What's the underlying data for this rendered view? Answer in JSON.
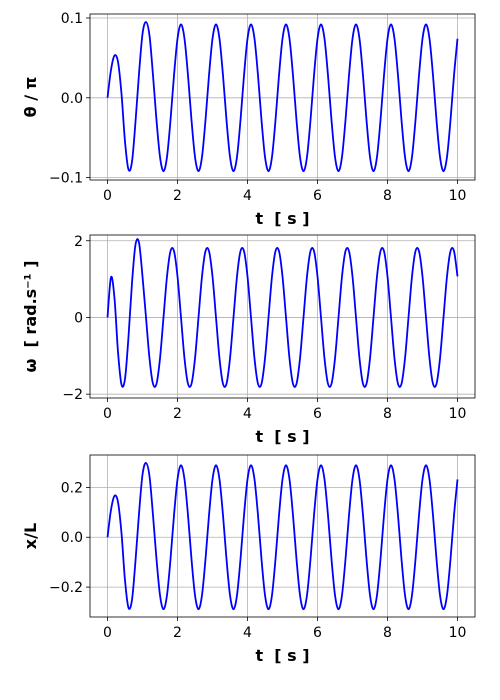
{
  "chart_data": [
    {
      "type": "line",
      "ylabel": "θ / π",
      "xlabel": "t  [ s ]",
      "color": "#0000ff",
      "grid": true,
      "xlim": [
        -0.5,
        10.5
      ],
      "xticks": [
        0,
        2,
        4,
        6,
        8,
        10
      ],
      "ylim": [
        -0.103,
        0.105
      ],
      "yticks": [
        {
          "value": -0.1,
          "label": "−0.1"
        },
        {
          "value": 0,
          "label": "0.0"
        },
        {
          "value": 0.1,
          "label": "0.1"
        }
      ],
      "x": [
        0,
        0.1,
        0.2,
        0.3,
        0.4,
        0.5,
        0.6,
        0.7,
        0.8,
        0.9,
        1,
        1.1,
        1.2,
        1.3,
        1.4,
        1.5,
        1.6,
        1.7,
        1.8,
        1.9,
        2,
        2.1,
        2.2,
        2.3,
        2.4,
        2.5,
        2.6,
        2.7,
        2.8,
        2.9,
        3,
        3.1,
        3.2,
        3.3,
        3.4,
        3.5,
        3.6,
        3.7,
        3.8,
        3.9,
        4,
        4.1,
        4.2,
        4.3,
        4.4,
        4.5,
        4.6,
        4.7,
        4.8,
        4.9,
        5,
        5.1,
        5.2,
        5.3,
        5.4,
        5.5,
        5.6,
        5.7,
        5.8,
        5.9,
        6,
        6.1,
        6.2,
        6.3,
        6.4,
        6.5,
        6.6,
        6.7,
        6.8,
        6.9,
        7,
        7.1,
        7.2,
        7.3,
        7.4,
        7.5,
        7.6,
        7.7,
        7.8,
        7.9,
        8,
        8.1,
        8.2,
        8.3,
        8.4,
        8.5,
        8.6,
        8.7,
        8.8,
        8.9,
        9,
        9.1,
        9.2,
        9.3,
        9.4,
        9.5,
        9.6,
        9.7,
        9.8,
        9.9,
        10
      ],
      "values": [
        0,
        0.035,
        0.053,
        0.045,
        0.005,
        -0.055,
        -0.09,
        -0.08,
        -0.03,
        0.03,
        0.08,
        0.095,
        0.078,
        0.028,
        -0.028,
        -0.074,
        -0.092,
        -0.074,
        -0.028,
        0.028,
        0.074,
        0.092,
        0.074,
        0.028,
        -0.028,
        -0.074,
        -0.092,
        -0.074,
        -0.028,
        0.028,
        0.074,
        0.092,
        0.074,
        0.028,
        -0.028,
        -0.074,
        -0.092,
        -0.074,
        -0.028,
        0.028,
        0.074,
        0.092,
        0.074,
        0.028,
        -0.028,
        -0.074,
        -0.092,
        -0.074,
        -0.028,
        0.028,
        0.074,
        0.092,
        0.074,
        0.028,
        -0.028,
        -0.074,
        -0.092,
        -0.074,
        -0.028,
        0.028,
        0.074,
        0.092,
        0.074,
        0.028,
        -0.028,
        -0.074,
        -0.092,
        -0.074,
        -0.028,
        0.028,
        0.074,
        0.092,
        0.074,
        0.028,
        -0.028,
        -0.074,
        -0.092,
        -0.074,
        -0.028,
        0.028,
        0.074,
        0.092,
        0.074,
        0.028,
        -0.028,
        -0.074,
        -0.092,
        -0.074,
        -0.028,
        0.028,
        0.074,
        0.092,
        0.074,
        0.028,
        -0.028,
        -0.074,
        -0.092,
        -0.074,
        -0.028,
        0.028,
        0.074
      ]
    },
    {
      "type": "line",
      "ylabel": "ω  [ rad.s⁻¹ ]",
      "xlabel": "t  [ s ]",
      "color": "#0000ff",
      "grid": true,
      "xlim": [
        -0.5,
        10.5
      ],
      "xticks": [
        0,
        2,
        4,
        6,
        8,
        10
      ],
      "ylim": [
        -2.1,
        2.15
      ],
      "yticks": [
        {
          "value": -2,
          "label": "−2"
        },
        0,
        2
      ],
      "x": [
        0,
        0.1,
        0.2,
        0.3,
        0.4,
        0.5,
        0.6,
        0.7,
        0.8,
        0.9,
        1,
        1.1,
        1.2,
        1.3,
        1.4,
        1.5,
        1.6,
        1.7,
        1.8,
        1.9,
        2,
        2.1,
        2.2,
        2.3,
        2.4,
        2.5,
        2.6,
        2.7,
        2.8,
        2.9,
        3,
        3.1,
        3.2,
        3.3,
        3.4,
        3.5,
        3.6,
        3.7,
        3.8,
        3.9,
        4,
        4.1,
        4.2,
        4.3,
        4.4,
        4.5,
        4.6,
        4.7,
        4.8,
        4.9,
        5,
        5.1,
        5.2,
        5.3,
        5.4,
        5.5,
        5.6,
        5.7,
        5.8,
        5.9,
        6,
        6.1,
        6.2,
        6.3,
        6.4,
        6.5,
        6.6,
        6.7,
        6.8,
        6.9,
        7,
        7.1,
        7.2,
        7.3,
        7.4,
        7.5,
        7.6,
        7.7,
        7.8,
        7.9,
        8,
        8.1,
        8.2,
        8.3,
        8.4,
        8.5,
        8.6,
        8.7,
        8.8,
        8.9,
        9,
        9.1,
        9.2,
        9.3,
        9.4,
        9.5,
        9.6,
        9.7,
        9.8,
        9.9,
        10
      ],
      "values": [
        0,
        1.05,
        0.5,
        -0.9,
        -1.75,
        -1.6,
        -0.5,
        0.9,
        1.9,
        1.95,
        1.07,
        0,
        -1.07,
        -1.73,
        -1.73,
        -1.07,
        0,
        1.07,
        1.73,
        1.73,
        1.07,
        0,
        -1.07,
        -1.73,
        -1.73,
        -1.07,
        0,
        1.07,
        1.73,
        1.73,
        1.07,
        0,
        -1.07,
        -1.73,
        -1.73,
        -1.07,
        0,
        1.07,
        1.73,
        1.73,
        1.07,
        0,
        -1.07,
        -1.73,
        -1.73,
        -1.07,
        0,
        1.07,
        1.73,
        1.73,
        1.07,
        0,
        -1.07,
        -1.73,
        -1.73,
        -1.07,
        0,
        1.07,
        1.73,
        1.73,
        1.07,
        0,
        -1.07,
        -1.73,
        -1.73,
        -1.07,
        0,
        1.07,
        1.73,
        1.73,
        1.07,
        0,
        -1.07,
        -1.73,
        -1.73,
        -1.07,
        0,
        1.07,
        1.73,
        1.73,
        1.07,
        0,
        -1.07,
        -1.73,
        -1.73,
        -1.07,
        0,
        1.07,
        1.73,
        1.73,
        1.07,
        0,
        -1.07,
        -1.73,
        -1.73,
        -1.07,
        0,
        1.07,
        1.73,
        1.73,
        1.07
      ]
    },
    {
      "type": "line",
      "ylabel": "x/L",
      "xlabel": "t  [ s ]",
      "color": "#0000ff",
      "grid": true,
      "xlim": [
        -0.5,
        10.5
      ],
      "xticks": [
        0,
        2,
        4,
        6,
        8,
        10
      ],
      "ylim": [
        -0.32,
        0.33
      ],
      "yticks": [
        {
          "value": -0.2,
          "label": "−0.2"
        },
        {
          "value": 0,
          "label": "0.0"
        },
        0.2
      ],
      "x": [
        0,
        0.1,
        0.2,
        0.3,
        0.4,
        0.5,
        0.6,
        0.7,
        0.8,
        0.9,
        1,
        1.1,
        1.2,
        1.3,
        1.4,
        1.5,
        1.6,
        1.7,
        1.8,
        1.9,
        2,
        2.1,
        2.2,
        2.3,
        2.4,
        2.5,
        2.6,
        2.7,
        2.8,
        2.9,
        3,
        3.1,
        3.2,
        3.3,
        3.4,
        3.5,
        3.6,
        3.7,
        3.8,
        3.9,
        4,
        4.1,
        4.2,
        4.3,
        4.4,
        4.5,
        4.6,
        4.7,
        4.8,
        4.9,
        5,
        5.1,
        5.2,
        5.3,
        5.4,
        5.5,
        5.6,
        5.7,
        5.8,
        5.9,
        6,
        6.1,
        6.2,
        6.3,
        6.4,
        6.5,
        6.6,
        6.7,
        6.8,
        6.9,
        7,
        7.1,
        7.2,
        7.3,
        7.4,
        7.5,
        7.6,
        7.7,
        7.8,
        7.9,
        8,
        8.1,
        8.2,
        8.3,
        8.4,
        8.5,
        8.6,
        8.7,
        8.8,
        8.9,
        9,
        9.1,
        9.2,
        9.3,
        9.4,
        9.5,
        9.6,
        9.7,
        9.8,
        9.9,
        10
      ],
      "values": [
        0,
        0.11,
        0.166,
        0.141,
        0.016,
        -0.173,
        -0.283,
        -0.251,
        -0.094,
        0.094,
        0.251,
        0.298,
        0.245,
        0.088,
        -0.088,
        -0.232,
        -0.289,
        -0.232,
        -0.088,
        0.088,
        0.232,
        0.289,
        0.232,
        0.088,
        -0.088,
        -0.232,
        -0.289,
        -0.232,
        -0.088,
        0.088,
        0.232,
        0.289,
        0.232,
        0.088,
        -0.088,
        -0.232,
        -0.289,
        -0.232,
        -0.088,
        0.088,
        0.232,
        0.289,
        0.232,
        0.088,
        -0.088,
        -0.232,
        -0.289,
        -0.232,
        -0.088,
        0.088,
        0.232,
        0.289,
        0.232,
        0.088,
        -0.088,
        -0.232,
        -0.289,
        -0.232,
        -0.088,
        0.088,
        0.232,
        0.289,
        0.232,
        0.088,
        -0.088,
        -0.232,
        -0.289,
        -0.232,
        -0.088,
        0.088,
        0.232,
        0.289,
        0.232,
        0.088,
        -0.088,
        -0.232,
        -0.289,
        -0.232,
        -0.088,
        0.088,
        0.232,
        0.289,
        0.232,
        0.088,
        -0.088,
        -0.232,
        -0.289,
        -0.232,
        -0.088,
        0.088,
        0.232,
        0.289,
        0.232,
        0.088,
        -0.088,
        -0.232,
        -0.289,
        -0.232,
        -0.088,
        0.088,
        0.232
      ]
    }
  ]
}
